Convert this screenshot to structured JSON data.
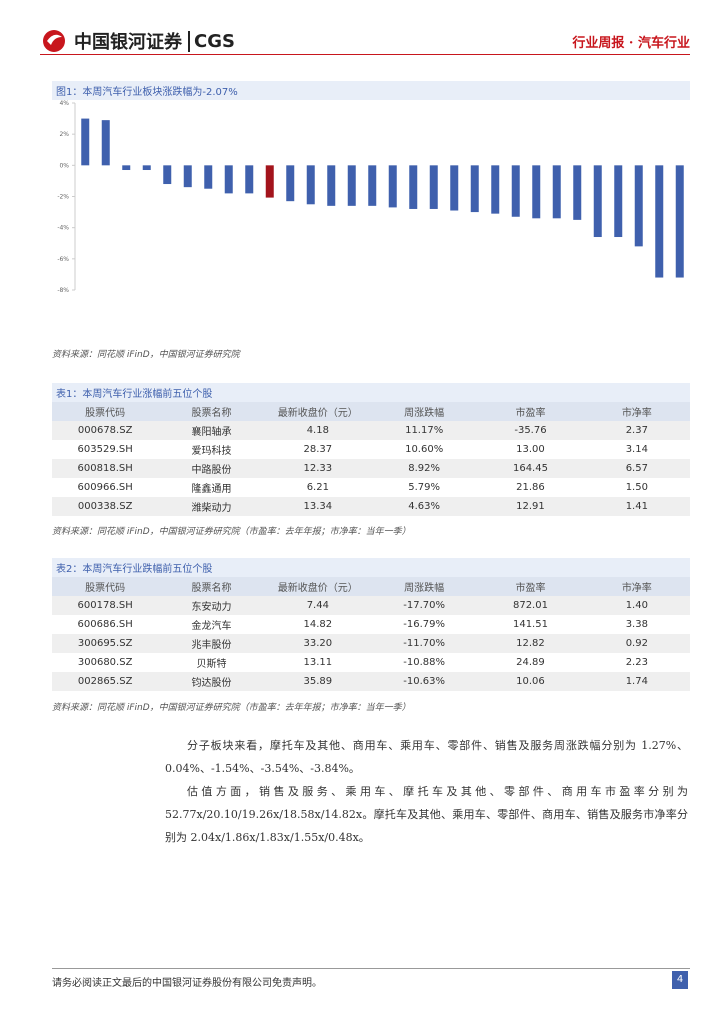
{
  "header": {
    "logo_cn": "中国银河证券",
    "logo_en": "CGS",
    "report_type": "行业周报",
    "separator": "·",
    "sector": "汽车行业"
  },
  "chart_data": {
    "type": "bar",
    "title": "图1：本周汽车行业板块涨跌幅为-2.07%",
    "categories": [
      null,
      null,
      null,
      null,
      null,
      null,
      null,
      null,
      null,
      null,
      null,
      null,
      null,
      null,
      null,
      null,
      null,
      null,
      null,
      null,
      null,
      null,
      null,
      null,
      null,
      null,
      null,
      null,
      null,
      null
    ],
    "values": [
      3.0,
      2.9,
      -0.3,
      -0.3,
      -1.2,
      -1.4,
      -1.5,
      -1.8,
      -1.8,
      -2.07,
      -2.3,
      -2.5,
      -2.6,
      -2.6,
      -2.6,
      -2.7,
      -2.8,
      -2.8,
      -2.9,
      -3.0,
      -3.1,
      -3.3,
      -3.4,
      -3.4,
      -3.5,
      -4.6,
      -4.6,
      -5.2,
      -7.2,
      -7.2
    ],
    "colors": [
      "#3f60ad",
      "#3f60ad",
      "#3f60ad",
      "#3f60ad",
      "#3f60ad",
      "#3f60ad",
      "#3f60ad",
      "#3f60ad",
      "#3f60ad",
      "#a3141c",
      "#3f60ad",
      "#3f60ad",
      "#3f60ad",
      "#3f60ad",
      "#3f60ad",
      "#3f60ad",
      "#3f60ad",
      "#3f60ad",
      "#3f60ad",
      "#3f60ad",
      "#3f60ad",
      "#3f60ad",
      "#3f60ad",
      "#3f60ad",
      "#3f60ad",
      "#3f60ad",
      "#3f60ad",
      "#3f60ad",
      "#3f60ad",
      "#3f60ad"
    ],
    "ylim": [
      -8,
      4
    ],
    "yticks": [
      {
        "value": -8,
        "label": "-8%"
      },
      {
        "value": -6,
        "label": "-6%"
      },
      {
        "value": -4,
        "label": "-4%"
      },
      {
        "value": -2,
        "label": "-2%"
      },
      {
        "value": 0,
        "label": "0%"
      },
      {
        "value": 2,
        "label": "2%"
      },
      {
        "value": 4,
        "label": "4%"
      }
    ],
    "grid": false,
    "source": "资料来源：同花顺 iFinD，中国银河证券研究院"
  },
  "tables": [
    {
      "title": "表1：本周汽车行业涨幅前五位个股",
      "columns": [
        "股票代码",
        "股票名称",
        "最新收盘价（元）",
        "周涨跌幅",
        "市盈率",
        "市净率"
      ],
      "rows": [
        [
          "000678.SZ",
          "襄阳轴承",
          "4.18",
          "11.17%",
          "-35.76",
          "2.37"
        ],
        [
          "603529.SH",
          "爱玛科技",
          "28.37",
          "10.60%",
          "13.00",
          "3.14"
        ],
        [
          "600818.SH",
          "中路股份",
          "12.33",
          "8.92%",
          "164.45",
          "6.57"
        ],
        [
          "600966.SH",
          "隆鑫通用",
          "6.21",
          "5.79%",
          "21.86",
          "1.50"
        ],
        [
          "000338.SZ",
          "潍柴动力",
          "13.34",
          "4.63%",
          "12.91",
          "1.41"
        ]
      ],
      "source": "资料来源：同花顺 iFinD，中国银河证券研究院（市盈率：去年年报；市净率：当年一季）"
    },
    {
      "title": "表2：本周汽车行业跌幅前五位个股",
      "columns": [
        "股票代码",
        "股票名称",
        "最新收盘价（元）",
        "周涨跌幅",
        "市盈率",
        "市净率"
      ],
      "rows": [
        [
          "600178.SH",
          "东安动力",
          "7.44",
          "-17.70%",
          "872.01",
          "1.40"
        ],
        [
          "600686.SH",
          "金龙汽车",
          "14.82",
          "-16.79%",
          "141.51",
          "3.38"
        ],
        [
          "300695.SZ",
          "兆丰股份",
          "33.20",
          "-11.70%",
          "12.82",
          "0.92"
        ],
        [
          "300680.SZ",
          "贝斯特",
          "13.11",
          "-10.88%",
          "24.89",
          "2.23"
        ],
        [
          "002865.SZ",
          "钧达股份",
          "35.89",
          "-10.63%",
          "10.06",
          "1.74"
        ]
      ],
      "source": "资料来源：同花顺 iFinD，中国银河证券研究院（市盈率：去年年报；市净率：当年一季）"
    }
  ],
  "paragraphs": [
    "分子板块来看，摩托车及其他、商用车、乘用车、零部件、销售及服务周涨跌幅分别为 1.27%、0.04%、-1.54%、-3.54%、-3.84%。",
    "估值方面，销售及服务、乘用车、摩托车及其他、零部件、商用车市盈率分别为 52.77x/20.10/19.26x/18.58x/14.82x。摩托车及其他、乘用车、零部件、商用车、销售及服务市净率分别为 2.04x/1.86x/1.83x/1.55x/0.48x。"
  ],
  "footer": {
    "disclaimer": "请务必阅读正文最后的中国银河证券股份有限公司免责声明。",
    "page": "4"
  }
}
